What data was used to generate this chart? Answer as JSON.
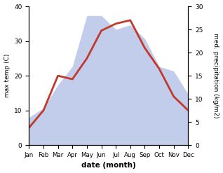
{
  "months": [
    "Jan",
    "Feb",
    "Mar",
    "Apr",
    "May",
    "Jun",
    "Jul",
    "Aug",
    "Sep",
    "Oct",
    "Nov",
    "Dec"
  ],
  "max_temp": [
    5,
    10,
    20,
    19,
    25,
    33,
    35,
    36,
    28,
    22,
    14,
    10
  ],
  "precipitation": [
    6,
    8,
    13,
    17,
    28,
    28,
    25,
    26,
    23,
    17,
    16,
    11
  ],
  "temp_color": "#c0392b",
  "precip_color_fill": "#b8c4e8",
  "ylabel_left": "max temp (C)",
  "ylabel_right": "med. precipitation (kg/m2)",
  "xlabel": "date (month)",
  "ylim_left": [
    0,
    40
  ],
  "ylim_right": [
    0,
    30
  ],
  "yticks_left": [
    0,
    10,
    20,
    30,
    40
  ],
  "yticks_right": [
    0,
    5,
    10,
    15,
    20,
    25,
    30
  ],
  "bg_color": "#ffffff",
  "line_width": 2.0
}
